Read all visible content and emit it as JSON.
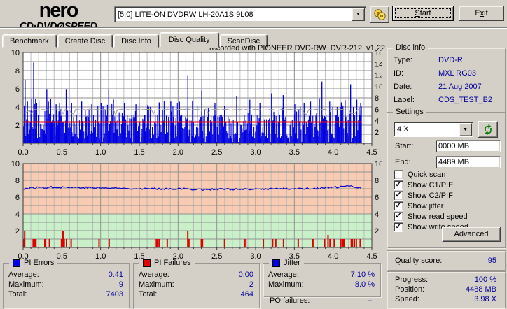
{
  "icons": {
    "dropdown_arrow": "▼",
    "checkmark": "✓"
  },
  "header": {
    "logo_line1": "nero",
    "logo_line2": "CD·DVDØSPEED",
    "drive_select": "[5:0]   LITE-ON DVDRW LH-20A1S 9L08",
    "start_button": {
      "label": "Start",
      "accel": 0
    },
    "exit_button": {
      "label": "Exit",
      "accel": 1
    }
  },
  "tabs": [
    {
      "label": "Benchmark",
      "active": false
    },
    {
      "label": "Create Disc",
      "active": false
    },
    {
      "label": "Disc Info",
      "active": false
    },
    {
      "label": "Disc Quality",
      "active": true
    },
    {
      "label": "ScanDisc",
      "active": false
    }
  ],
  "chart_data": {
    "chart1": {
      "type": "bar",
      "title": "recorded with PIONEER DVD-RW  DVR-212  v1.22",
      "series": "PI Errors",
      "ylim_left": [
        0,
        10
      ],
      "ylim_right": [
        0,
        16
      ],
      "y_ticks_left": [
        2,
        4,
        6,
        8,
        10
      ],
      "y_ticks_right": [
        2,
        4,
        6,
        8,
        10,
        12,
        14,
        16
      ],
      "x_ticks": [
        "0.0",
        "0.5",
        "1.0",
        "1.5",
        "2.0",
        "2.5",
        "3.0",
        "3.5",
        "4.0",
        "4.5"
      ],
      "x_max_gb": 4.5,
      "data_end_gb": 4.37,
      "bar_color": "#0000E0",
      "grid_minor_color": "#BFBFBF",
      "grid_major_color": "#8E8E8E",
      "read_speed_line": {
        "y": 2.35,
        "color": "#E60000"
      },
      "write_speed_line": {
        "y": 3.7,
        "color": "#9A9A9A"
      },
      "n_bars": 460,
      "seed": 1234,
      "spikes": [
        [
          0.02,
          7.0
        ],
        [
          0.05,
          4.6
        ],
        [
          0.13,
          8.9
        ],
        [
          0.155,
          4.9
        ],
        [
          0.3,
          5.9
        ],
        [
          0.345,
          4.7
        ],
        [
          0.42,
          4.3
        ],
        [
          0.55,
          5.9
        ],
        [
          0.62,
          4.4
        ],
        [
          0.75,
          4.6
        ],
        [
          0.88,
          4.3
        ],
        [
          1.0,
          4.4
        ],
        [
          1.1,
          5.9
        ],
        [
          1.16,
          4.8
        ],
        [
          1.3,
          4.4
        ],
        [
          1.45,
          4.3
        ],
        [
          1.6,
          4.2
        ],
        [
          1.75,
          4.5
        ],
        [
          1.9,
          4.6
        ],
        [
          2.12,
          7.5
        ],
        [
          2.18,
          4.7
        ],
        [
          2.3,
          5.8
        ],
        [
          2.47,
          4.4
        ],
        [
          2.75,
          5.2
        ],
        [
          2.92,
          4.8
        ],
        [
          3.05,
          4.4
        ],
        [
          3.2,
          5.5
        ],
        [
          3.35,
          5.3
        ],
        [
          3.5,
          4.3
        ],
        [
          3.62,
          4.4
        ],
        [
          3.85,
          6.8
        ],
        [
          3.95,
          4.6
        ],
        [
          4.1,
          4.5
        ],
        [
          4.22,
          6.5
        ],
        [
          4.3,
          4.8
        ],
        [
          4.35,
          4.4
        ]
      ]
    },
    "chart2": {
      "type": "line+bar",
      "ylim": [
        0,
        10
      ],
      "y_ticks": [
        2,
        4,
        6,
        8,
        10
      ],
      "x_ticks": [
        "0.0",
        "0.5",
        "1.0",
        "1.5",
        "2.0",
        "2.5",
        "3.0",
        "3.5",
        "4.0",
        "4.5"
      ],
      "x_max_gb": 4.5,
      "data_end_gb": 4.37,
      "zone_split": 4,
      "zone_top_color": "#F8CBB2",
      "zone_bottom_color": "#C9F0C9",
      "grid_minor_color": "#B9B9B9",
      "grid_major_color": "#929292",
      "jitter": {
        "color": "#0000CC",
        "avg": 7.1,
        "noise": 0.11,
        "seed": 77,
        "anchors": [
          [
            0,
            7.0
          ],
          [
            0.2,
            7.15
          ],
          [
            0.5,
            7.2
          ],
          [
            0.7,
            7.15
          ],
          [
            1.0,
            7.1
          ],
          [
            1.3,
            7.05
          ],
          [
            1.6,
            7.0
          ],
          [
            2.0,
            7.0
          ],
          [
            2.3,
            6.9
          ],
          [
            2.6,
            6.95
          ],
          [
            2.9,
            6.9
          ],
          [
            3.2,
            7.0
          ],
          [
            3.5,
            7.0
          ],
          [
            3.8,
            7.05
          ],
          [
            4.0,
            7.15
          ],
          [
            4.2,
            7.3
          ],
          [
            4.37,
            7.15
          ]
        ]
      },
      "pif": {
        "color": "#E00000",
        "bars": [
          [
            0.005,
            1
          ],
          [
            0.02,
            2
          ],
          [
            0.13,
            1
          ],
          [
            0.145,
            1
          ],
          [
            0.155,
            1
          ],
          [
            0.165,
            1
          ],
          [
            0.28,
            1
          ],
          [
            0.34,
            1
          ],
          [
            0.495,
            1
          ],
          [
            0.515,
            2
          ],
          [
            0.53,
            1
          ],
          [
            0.56,
            1
          ],
          [
            0.62,
            1
          ],
          [
            0.98,
            1
          ],
          [
            1.11,
            1
          ],
          [
            1.72,
            1
          ],
          [
            1.735,
            1
          ],
          [
            1.755,
            1
          ],
          [
            1.86,
            1
          ],
          [
            2.125,
            2
          ],
          [
            2.14,
            1
          ],
          [
            2.3,
            1
          ],
          [
            2.315,
            1
          ],
          [
            2.6,
            1
          ],
          [
            2.855,
            1
          ],
          [
            2.875,
            1
          ],
          [
            3.1,
            1
          ],
          [
            3.22,
            1
          ],
          [
            3.26,
            1
          ],
          [
            3.36,
            1
          ],
          [
            3.55,
            1
          ],
          [
            3.74,
            1
          ],
          [
            3.89,
            1
          ],
          [
            3.935,
            1.5
          ],
          [
            3.96,
            1
          ],
          [
            4.015,
            1
          ],
          [
            4.1,
            1
          ],
          [
            4.125,
            1
          ],
          [
            4.14,
            1
          ],
          [
            4.235,
            1
          ],
          [
            4.25,
            1
          ],
          [
            4.275,
            1
          ],
          [
            4.3,
            1
          ],
          [
            4.35,
            1
          ]
        ]
      }
    }
  },
  "disc_info": {
    "title": "Disc info",
    "rows": [
      {
        "label": "Type:",
        "value": "DVD-R"
      },
      {
        "label": "ID:",
        "value": "MXL RG03"
      },
      {
        "label": "Date:",
        "value": "21 Aug 2007"
      },
      {
        "label": "Label:",
        "value": "CDS_TEST_B2"
      }
    ]
  },
  "settings": {
    "title": "Settings",
    "speed_value": "4 X",
    "start_label": "Start:",
    "start_value": "0000 MB",
    "end_label": "End:",
    "end_value": "4489 MB",
    "checkboxes": [
      {
        "label": "Quick scan",
        "checked": false
      },
      {
        "label": "Show C1/PIE",
        "checked": true
      },
      {
        "label": "Show C2/PIF",
        "checked": true
      },
      {
        "label": "Show jitter",
        "checked": true
      },
      {
        "label": "Show read speed",
        "checked": true
      },
      {
        "label": "Show write speed",
        "checked": true
      }
    ],
    "advanced_button": "Advanced"
  },
  "quality": {
    "label": "Quality score:",
    "value": "95"
  },
  "stats": {
    "pi_errors": {
      "title": "PI Errors",
      "legend_color": "#0000E0",
      "rows": [
        {
          "label": "Average:",
          "value": "0.41"
        },
        {
          "label": "Maximum:",
          "value": "9"
        },
        {
          "label": "Total:",
          "value": "7403"
        }
      ]
    },
    "pi_failures": {
      "title": "PI Failures",
      "legend_color": "#E00000",
      "rows": [
        {
          "label": "Average:",
          "value": "0.00"
        },
        {
          "label": "Maximum:",
          "value": "2"
        },
        {
          "label": "Total:",
          "value": "464"
        }
      ]
    },
    "jitter": {
      "title": "Jitter",
      "legend_color": "#0000E0",
      "rows": [
        {
          "label": "Average:",
          "value": "7.10 %"
        },
        {
          "label": "Maximum:",
          "value": "8.0 %"
        }
      ]
    },
    "po_failures": {
      "label": "PO failures:",
      "value": "–"
    }
  },
  "progress": {
    "rows": [
      {
        "label": "Progress:",
        "value": "100 %"
      },
      {
        "label": "Position:",
        "value": "4488 MB"
      },
      {
        "label": "Speed:",
        "value": "3.98 X"
      }
    ]
  }
}
